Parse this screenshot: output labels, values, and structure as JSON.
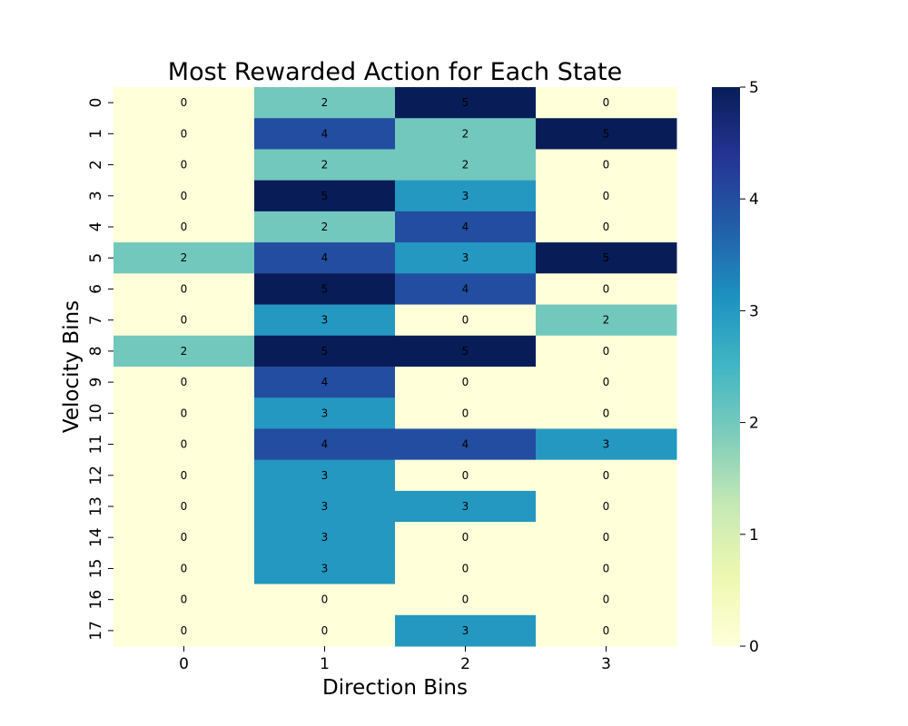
{
  "chart_data": {
    "type": "heatmap",
    "title": "Most Rewarded Action for Each State",
    "xlabel": "Direction Bins",
    "ylabel": "Velocity Bins",
    "x_categories": [
      "0",
      "1",
      "2",
      "3"
    ],
    "y_categories": [
      "0",
      "1",
      "2",
      "3",
      "4",
      "5",
      "6",
      "7",
      "8",
      "9",
      "10",
      "11",
      "12",
      "13",
      "14",
      "15",
      "16",
      "17"
    ],
    "values": [
      [
        0,
        2,
        5,
        0
      ],
      [
        0,
        4,
        2,
        5
      ],
      [
        0,
        2,
        2,
        0
      ],
      [
        0,
        5,
        3,
        0
      ],
      [
        0,
        2,
        4,
        0
      ],
      [
        2,
        4,
        3,
        5
      ],
      [
        0,
        5,
        4,
        0
      ],
      [
        0,
        3,
        0,
        2
      ],
      [
        2,
        5,
        5,
        0
      ],
      [
        0,
        4,
        0,
        0
      ],
      [
        0,
        3,
        0,
        0
      ],
      [
        0,
        4,
        4,
        3
      ],
      [
        0,
        3,
        0,
        0
      ],
      [
        0,
        3,
        3,
        0
      ],
      [
        0,
        3,
        0,
        0
      ],
      [
        0,
        3,
        0,
        0
      ],
      [
        0,
        0,
        0,
        0
      ],
      [
        0,
        0,
        3,
        0
      ]
    ],
    "annotations": true,
    "colormap": "YlGnBu",
    "colorbar": {
      "min": 0,
      "max": 5,
      "ticks": [
        "0",
        "1",
        "2",
        "3",
        "4",
        "5"
      ]
    },
    "colors": {
      "0": "#ffffd9",
      "2": "#73c8bd",
      "3": "#2498c1",
      "4": "#234da0",
      "5": "#081d58"
    }
  }
}
